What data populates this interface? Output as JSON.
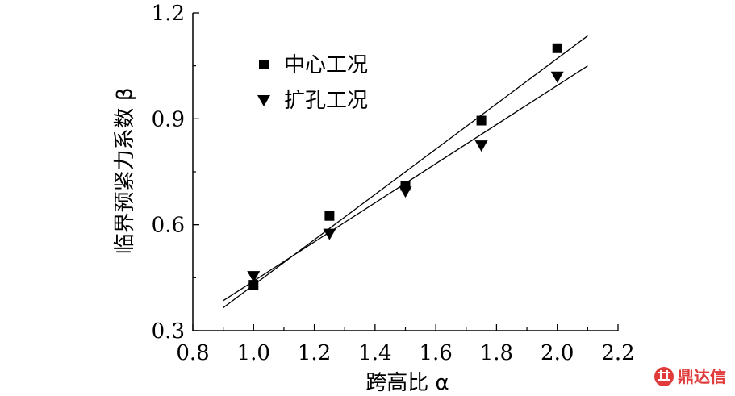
{
  "chart_data": {
    "type": "scatter",
    "xlabel": "跨高比 α",
    "ylabel": "临界预紧力系数 β",
    "xlim": [
      0.8,
      2.2
    ],
    "ylim": [
      0.3,
      1.2
    ],
    "xticks": [
      "0.8",
      "1.0",
      "1.2",
      "1.4",
      "1.6",
      "1.8",
      "2.0",
      "2.2"
    ],
    "yticks": [
      "0.3",
      "0.6",
      "0.9",
      "1.2"
    ],
    "xtick_values": [
      0.8,
      1.0,
      1.2,
      1.4,
      1.6,
      1.8,
      2.0,
      2.2
    ],
    "ytick_values": [
      0.3,
      0.6,
      0.9,
      1.2
    ],
    "grid": false,
    "legend_position": "top-left",
    "series": [
      {
        "name": "中心工况",
        "marker": "square",
        "x": [
          1.0,
          1.25,
          1.5,
          1.75,
          2.0
        ],
        "y": [
          0.43,
          0.625,
          0.71,
          0.895,
          1.1
        ],
        "fit_line": {
          "x": [
            0.9,
            2.1
          ],
          "y": [
            0.365,
            1.135
          ]
        }
      },
      {
        "name": "扩孔工况",
        "marker": "triangle-down",
        "x": [
          1.0,
          1.25,
          1.5,
          1.75,
          2.0
        ],
        "y": [
          0.455,
          0.575,
          0.695,
          0.825,
          1.02
        ],
        "fit_line": {
          "x": [
            0.9,
            2.1
          ],
          "y": [
            0.385,
            1.05
          ]
        }
      }
    ]
  },
  "watermark": {
    "icon": "dingdaxin-logo-icon",
    "text": "鼎达信",
    "color": "#e03a3a"
  }
}
